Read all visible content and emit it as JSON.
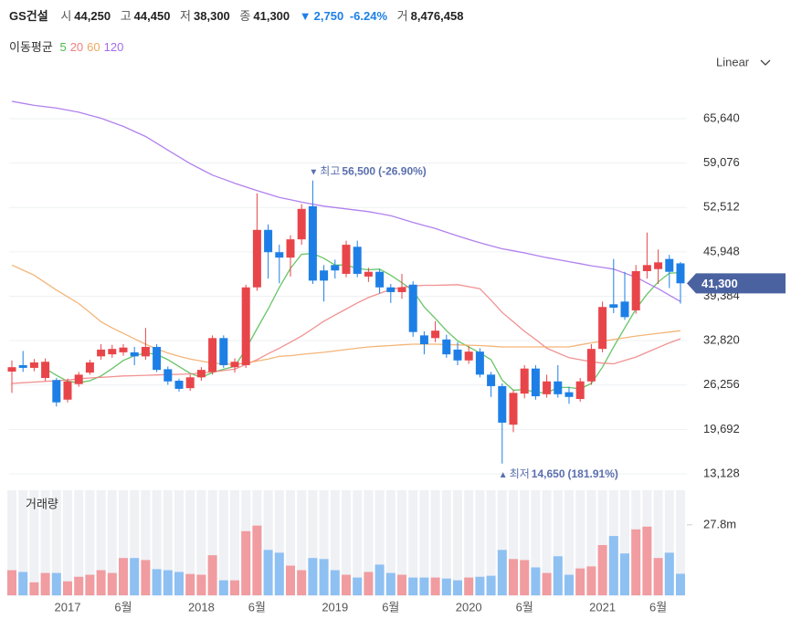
{
  "header": {
    "name": "GS건설",
    "quotes": [
      {
        "label": "시",
        "value": "44,250"
      },
      {
        "label": "고",
        "value": "44,450"
      },
      {
        "label": "저",
        "value": "38,300"
      },
      {
        "label": "종",
        "value": "41,300"
      }
    ],
    "change": {
      "arrow": "▼",
      "amount": "2,750",
      "percent": "-6.24%"
    },
    "volume": {
      "label": "거",
      "value": "8,476,458"
    }
  },
  "chart_data": {
    "type": "candlestick",
    "legend_title": "이동평균",
    "scale": "Linear",
    "categories": [
      null,
      null,
      null,
      null,
      null,
      "2017",
      null,
      null,
      null,
      null,
      "6월",
      null,
      null,
      null,
      null,
      null,
      null,
      "2018",
      null,
      null,
      null,
      null,
      "6월",
      null,
      null,
      null,
      null,
      null,
      null,
      "2019",
      null,
      null,
      null,
      null,
      "6월",
      null,
      null,
      null,
      null,
      null,
      null,
      "2020",
      null,
      null,
      null,
      null,
      "6월",
      null,
      null,
      null,
      null,
      null,
      null,
      "2021",
      null,
      null,
      null,
      null,
      "6월",
      null,
      null
    ],
    "open": [
      28250,
      29200,
      28800,
      27300,
      27000,
      24100,
      26400,
      28100,
      30500,
      30800,
      31100,
      31100,
      30500,
      31900,
      28600,
      26900,
      25800,
      27400,
      28200,
      33200,
      28900,
      29200,
      40700,
      49200,
      45900,
      45100,
      47800,
      52700,
      43200,
      44000,
      42700,
      46700,
      42300,
      43000,
      40700,
      40000,
      41100,
      33600,
      33200,
      33000,
      31500,
      29900,
      31200,
      27800,
      26100,
      20400,
      25000,
      28700,
      24900,
      26800,
      25200,
      24200,
      26800,
      31600,
      38200,
      38600,
      37300,
      43100,
      43400,
      44900,
      44250
    ],
    "high": [
      29900,
      31300,
      30100,
      30200,
      27300,
      27200,
      28200,
      30000,
      32300,
      32200,
      32300,
      31900,
      34700,
      32300,
      29000,
      27200,
      27800,
      28900,
      33600,
      33600,
      30200,
      41100,
      54600,
      50000,
      47000,
      48400,
      53000,
      56500,
      44000,
      44800,
      47600,
      47600,
      43600,
      43400,
      41200,
      42700,
      41600,
      34200,
      35700,
      33700,
      32600,
      32000,
      31700,
      28200,
      26500,
      25500,
      29200,
      29200,
      27800,
      29200,
      26000,
      27300,
      32300,
      38600,
      44900,
      43000,
      44000,
      48800,
      46300,
      45500,
      44450
    ],
    "low": [
      25100,
      28200,
      28300,
      26900,
      23100,
      23700,
      26000,
      27800,
      30000,
      30300,
      30600,
      29200,
      30000,
      28200,
      26300,
      25300,
      25400,
      26900,
      27800,
      28800,
      28100,
      28800,
      40200,
      42000,
      41300,
      42300,
      47000,
      41200,
      38600,
      42000,
      42200,
      42200,
      41500,
      39800,
      38400,
      39000,
      33400,
      30800,
      32600,
      30300,
      29200,
      29400,
      27400,
      24500,
      14650,
      19300,
      24300,
      24100,
      24400,
      24400,
      23500,
      23800,
      26300,
      31100,
      36900,
      35900,
      36800,
      42000,
      41200,
      40600,
      38300
    ],
    "close": [
      28900,
      28800,
      29600,
      29700,
      23700,
      26800,
      27800,
      29600,
      31500,
      31600,
      31800,
      30500,
      31900,
      28500,
      26800,
      25700,
      27400,
      28500,
      33200,
      29200,
      29700,
      40700,
      49200,
      45900,
      45100,
      47800,
      52300,
      41700,
      41700,
      43200,
      47000,
      42700,
      43000,
      40700,
      40000,
      40700,
      34100,
      32300,
      34300,
      30800,
      29900,
      31200,
      27800,
      26100,
      20700,
      25100,
      28700,
      24600,
      26800,
      24900,
      24500,
      26800,
      31600,
      37800,
      37700,
      36300,
      43100,
      44000,
      44400,
      43000,
      41300
    ],
    "up_color": "#e8454a",
    "down_color": "#1d7fe6",
    "ylim": [
      11650,
      70360
    ],
    "yticks": [
      {
        "value": 65640,
        "label": "65,640"
      },
      {
        "value": 59076,
        "label": "59,076"
      },
      {
        "value": 52512,
        "label": "52,512"
      },
      {
        "value": 45948,
        "label": "45,948"
      },
      {
        "value": 39384,
        "label": "39,384"
      },
      {
        "value": 32820,
        "label": "32,820"
      },
      {
        "value": 26256,
        "label": "26,256"
      },
      {
        "value": 19692,
        "label": "19,692"
      },
      {
        "value": 13128,
        "label": "13,128"
      }
    ],
    "grid": true,
    "moving_averages": [
      {
        "name": "5",
        "color": "#4cbb4c",
        "values": [
          null,
          null,
          null,
          28700,
          27700,
          26800,
          26600,
          26900,
          27600,
          28700,
          29900,
          30600,
          31000,
          30800,
          30000,
          29000,
          28000,
          27400,
          28100,
          28600,
          29000,
          31600,
          34600,
          37500,
          40700,
          43500,
          45600,
          45700,
          45000,
          44000,
          44000,
          43500,
          43300,
          43400,
          42500,
          41400,
          40200,
          37800,
          36100,
          34300,
          32800,
          31900,
          31000,
          30000,
          27000,
          25500,
          25600,
          25200,
          25100,
          25900,
          25900,
          25700,
          26500,
          28900,
          31900,
          34700,
          37500,
          39700,
          41500,
          42800,
          42900
        ]
      },
      {
        "name": "20",
        "color": "#ef7f7f",
        "values": [
          26500,
          26600,
          26700,
          26800,
          26900,
          27000,
          27200,
          27300,
          27400,
          27500,
          27600,
          27650,
          27700,
          27750,
          27800,
          27850,
          27900,
          28050,
          28200,
          28400,
          28600,
          29300,
          30000,
          30900,
          31700,
          32600,
          33500,
          34600,
          35700,
          36600,
          37500,
          38400,
          39200,
          39800,
          40400,
          40700,
          40900,
          41000,
          41000,
          41050,
          41100,
          40800,
          40500,
          38800,
          37000,
          35600,
          34200,
          33000,
          31700,
          31000,
          30300,
          30000,
          29700,
          29500,
          29400,
          29900,
          30400,
          31100,
          31800,
          32500,
          33100
        ]
      },
      {
        "name": "60",
        "color": "#f1a862",
        "values": [
          44000,
          43250,
          42500,
          41400,
          40300,
          39300,
          38300,
          37000,
          35600,
          34700,
          33900,
          33100,
          32300,
          31600,
          31000,
          30500,
          30100,
          29800,
          29500,
          29400,
          29300,
          29500,
          29800,
          30100,
          30500,
          30600,
          30800,
          30950,
          31100,
          31300,
          31500,
          31700,
          31900,
          32000,
          32100,
          32200,
          32300,
          32300,
          32300,
          32250,
          32200,
          32150,
          32100,
          32000,
          31900,
          31900,
          31900,
          31900,
          31900,
          31900,
          31900,
          32200,
          32500,
          32750,
          33000,
          33250,
          33500,
          33700,
          33900,
          34100,
          34300
        ]
      },
      {
        "name": "120",
        "color": "#a36bea",
        "values": [
          68200,
          67900,
          67600,
          67400,
          67200,
          66900,
          66600,
          66150,
          65700,
          65100,
          64500,
          63750,
          63000,
          62000,
          61000,
          60000,
          59000,
          58150,
          57300,
          56700,
          56100,
          55550,
          55000,
          54500,
          54000,
          53650,
          53300,
          53000,
          52700,
          52500,
          52300,
          52100,
          51900,
          51600,
          51300,
          50800,
          50300,
          49850,
          49400,
          48850,
          48300,
          47800,
          47300,
          46850,
          46400,
          46100,
          45800,
          45450,
          45100,
          44800,
          44500,
          44200,
          43900,
          43650,
          43400,
          42800,
          42200,
          41350,
          40500,
          39550,
          38600
        ]
      }
    ],
    "last_price": {
      "value": 41300,
      "label": "41,300"
    },
    "last_price_color": "#4a62a0",
    "high_note": {
      "arrow": "▼",
      "text": "최고",
      "value": {
        "value": 56500,
        "label": "56,500"
      },
      "change": "(-26.90%)"
    },
    "low_note": {
      "arrow": "▲",
      "text": "최저",
      "value": {
        "value": 14650,
        "label": "14,650"
      },
      "change": "(181.91%)"
    },
    "note_color": "#5a6fae",
    "volume": {
      "title": "거래량",
      "up_color": "#f09ca0",
      "down_color": "#8ec0f2",
      "values": [
        9.9,
        9.2,
        5.1,
        8.8,
        8.8,
        5.5,
        7.3,
        8.1,
        9.9,
        8.8,
        14.7,
        14.7,
        13.9,
        10.3,
        9.9,
        9.2,
        8.4,
        8.1,
        15.8,
        5.9,
        5.9,
        25.3,
        27.5,
        17.9,
        16.8,
        11.7,
        9.9,
        14.7,
        14.3,
        9.9,
        8.1,
        7.0,
        9.2,
        12.1,
        8.8,
        8.1,
        7.0,
        7.0,
        7.0,
        6.6,
        5.9,
        7.0,
        7.3,
        7.7,
        17.9,
        14.3,
        13.9,
        11.0,
        8.8,
        15.4,
        8.1,
        10.6,
        11.4,
        19.8,
        23.4,
        16.5,
        26.0,
        27.1,
        14.7,
        16.8,
        8.48
      ],
      "ylim": [
        0,
        40
      ],
      "yticks": [
        {
          "value": 27.8,
          "label": "27.8m"
        }
      ]
    }
  }
}
